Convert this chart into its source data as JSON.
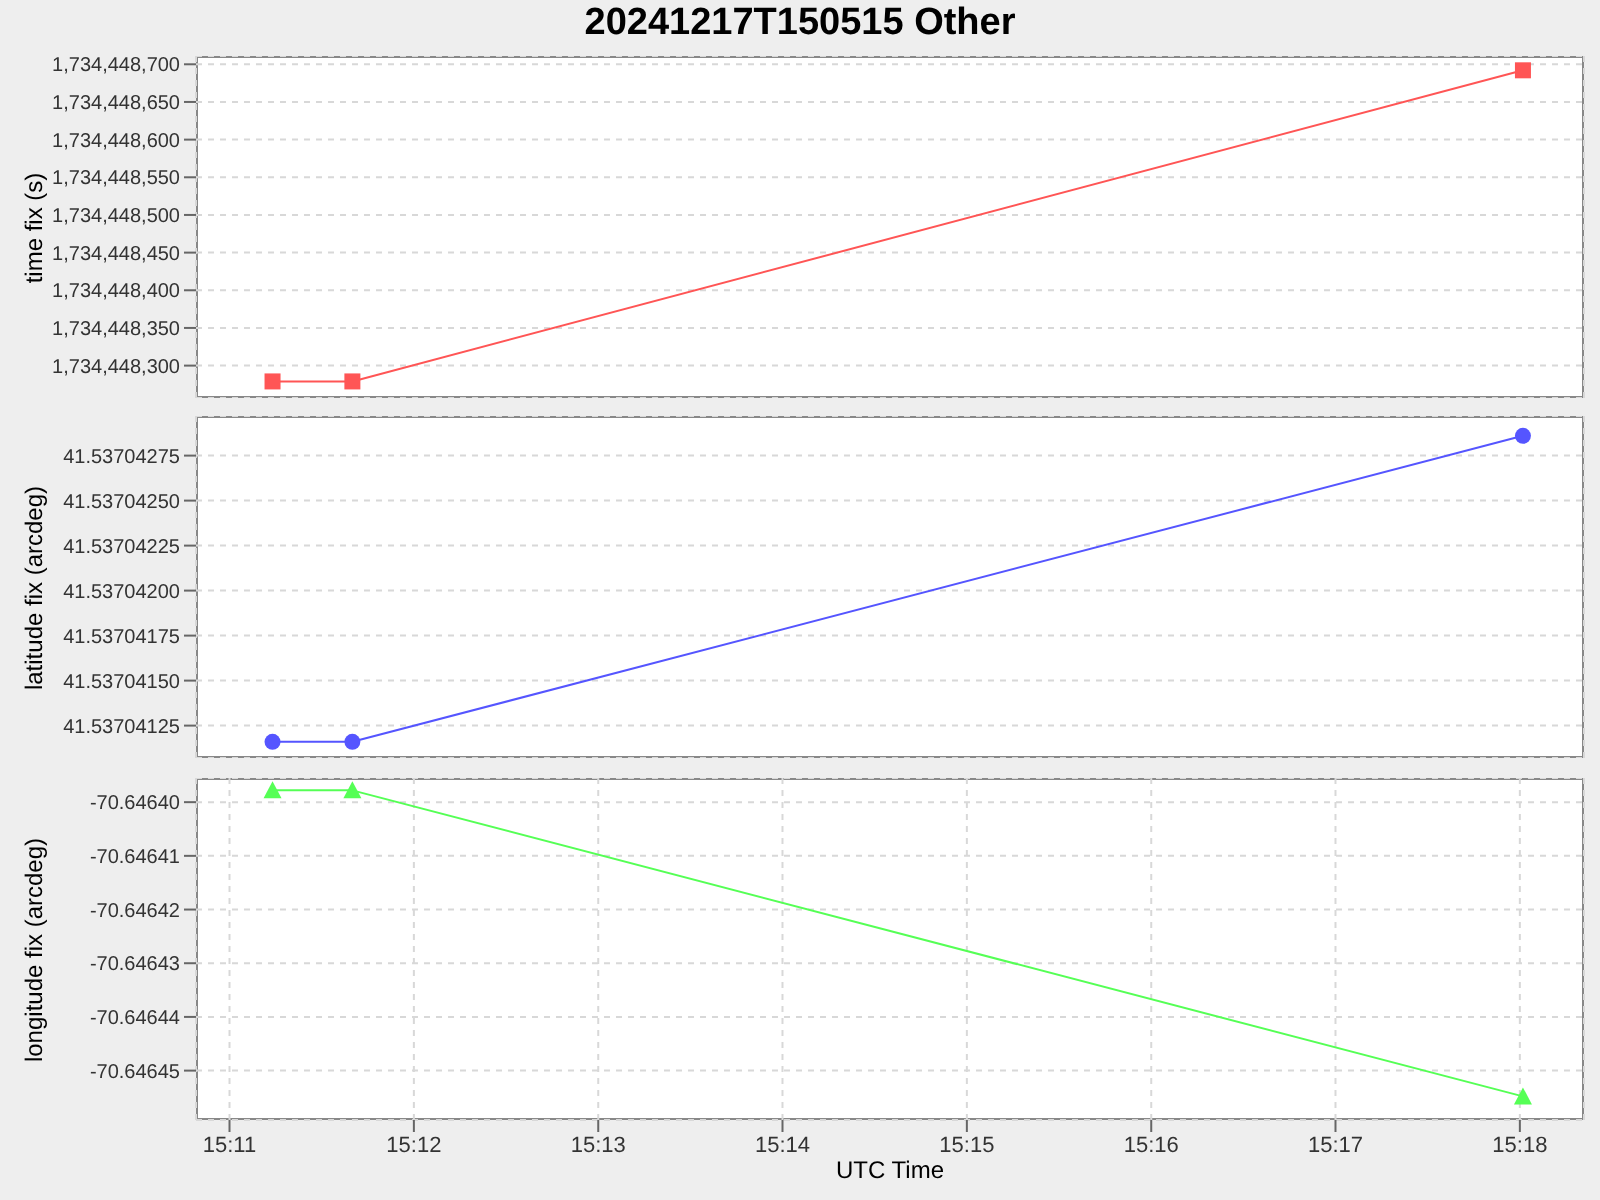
{
  "chart_data": [
    {
      "type": "line",
      "title": "20241217T150515 Other",
      "ylabel": "time fix (s)",
      "x": [
        15.18722,
        15.19444,
        15.30028
      ],
      "series": [
        {
          "color": "#ff5555",
          "values": [
            1734448279,
            1734448279,
            1734448692
          ]
        }
      ],
      "marker": "square",
      "grid": true,
      "tick_labels": "y",
      "xlim": [
        15.1803,
        15.3058
      ],
      "xticks": [
        {
          "value": 15.18333,
          "label": null
        },
        {
          "value": 15.2,
          "label": null
        },
        {
          "value": 15.21667,
          "label": null
        },
        {
          "value": 15.23333,
          "label": null
        },
        {
          "value": 15.25,
          "label": null
        },
        {
          "value": 15.26667,
          "label": null
        },
        {
          "value": 15.28333,
          "label": null
        },
        {
          "value": 15.3,
          "label": null
        }
      ],
      "ylim": [
        1734448257,
        1734448711
      ],
      "yticks": [
        {
          "value": 1734448300,
          "label": "1,734,448,300"
        },
        {
          "value": 1734448350,
          "label": "1,734,448,350"
        },
        {
          "value": 1734448400,
          "label": "1,734,448,400"
        },
        {
          "value": 1734448450,
          "label": "1,734,448,450"
        },
        {
          "value": 1734448500,
          "label": "1,734,448,500"
        },
        {
          "value": 1734448550,
          "label": "1,734,448,550"
        },
        {
          "value": 1734448600,
          "label": "1,734,448,600"
        },
        {
          "value": 1734448650,
          "label": "1,734,448,650"
        },
        {
          "value": 1734448700,
          "label": "1,734,448,700"
        }
      ]
    },
    {
      "type": "line",
      "ylabel": "latitude fix (arcdeg)",
      "x": [
        15.18722,
        15.19444,
        15.30028
      ],
      "series": [
        {
          "color": "#5555ff",
          "values": [
            41.53704116,
            41.53704116,
            41.53704286
          ]
        }
      ],
      "marker": "circle",
      "grid": true,
      "tick_labels": "y",
      "xlim": [
        15.1803,
        15.3058
      ],
      "xticks": [
        {
          "value": 15.18333,
          "label": null
        },
        {
          "value": 15.2,
          "label": null
        },
        {
          "value": 15.21667,
          "label": null
        },
        {
          "value": 15.23333,
          "label": null
        },
        {
          "value": 15.25,
          "label": null
        },
        {
          "value": 15.26667,
          "label": null
        },
        {
          "value": 15.28333,
          "label": null
        },
        {
          "value": 15.3,
          "label": null
        }
      ],
      "ylim": [
        41.53704107,
        41.53704297
      ],
      "yticks": [
        41.53704125,
        {
          "value": 41.5370415,
          "label": "41.53704150"
        },
        41.53704175,
        {
          "value": 41.537042,
          "label": "41.53704200"
        },
        41.53704225,
        {
          "value": 41.5370425,
          "label": "41.53704250"
        },
        41.53704275
      ]
    },
    {
      "type": "line",
      "ylabel": "longitude fix (arcdeg)",
      "xlabel": "UTC Time",
      "x": [
        15.18722,
        15.19444,
        15.30028
      ],
      "series": [
        {
          "color": "#55ff55",
          "values": [
            -70.6463978,
            -70.6463978,
            -70.6464548
          ]
        }
      ],
      "marker": "triangle",
      "grid": true,
      "xlim": [
        15.1803,
        15.3058
      ],
      "xticks": [
        {
          "value": 15.18333,
          "label": "15:11"
        },
        {
          "value": 15.2,
          "label": "15:12"
        },
        {
          "value": 15.21667,
          "label": "15:13"
        },
        {
          "value": 15.23333,
          "label": "15:14"
        },
        {
          "value": 15.25,
          "label": "15:15"
        },
        {
          "value": 15.26667,
          "label": "15:16"
        },
        {
          "value": 15.28333,
          "label": "15:17"
        },
        {
          "value": 15.3,
          "label": "15:18"
        }
      ],
      "ylim": [
        -70.6464592,
        -70.6463955
      ],
      "yticks": [
        {
          "value": -70.6464,
          "label": "-70.64640"
        },
        {
          "value": -70.64641,
          "label": "-70.64641"
        },
        {
          "value": -70.64642,
          "label": "-70.64642"
        },
        {
          "value": -70.64643,
          "label": "-70.64643"
        },
        {
          "value": -70.64644,
          "label": "-70.64644"
        },
        {
          "value": -70.64645,
          "label": "-70.64645"
        }
      ]
    }
  ]
}
